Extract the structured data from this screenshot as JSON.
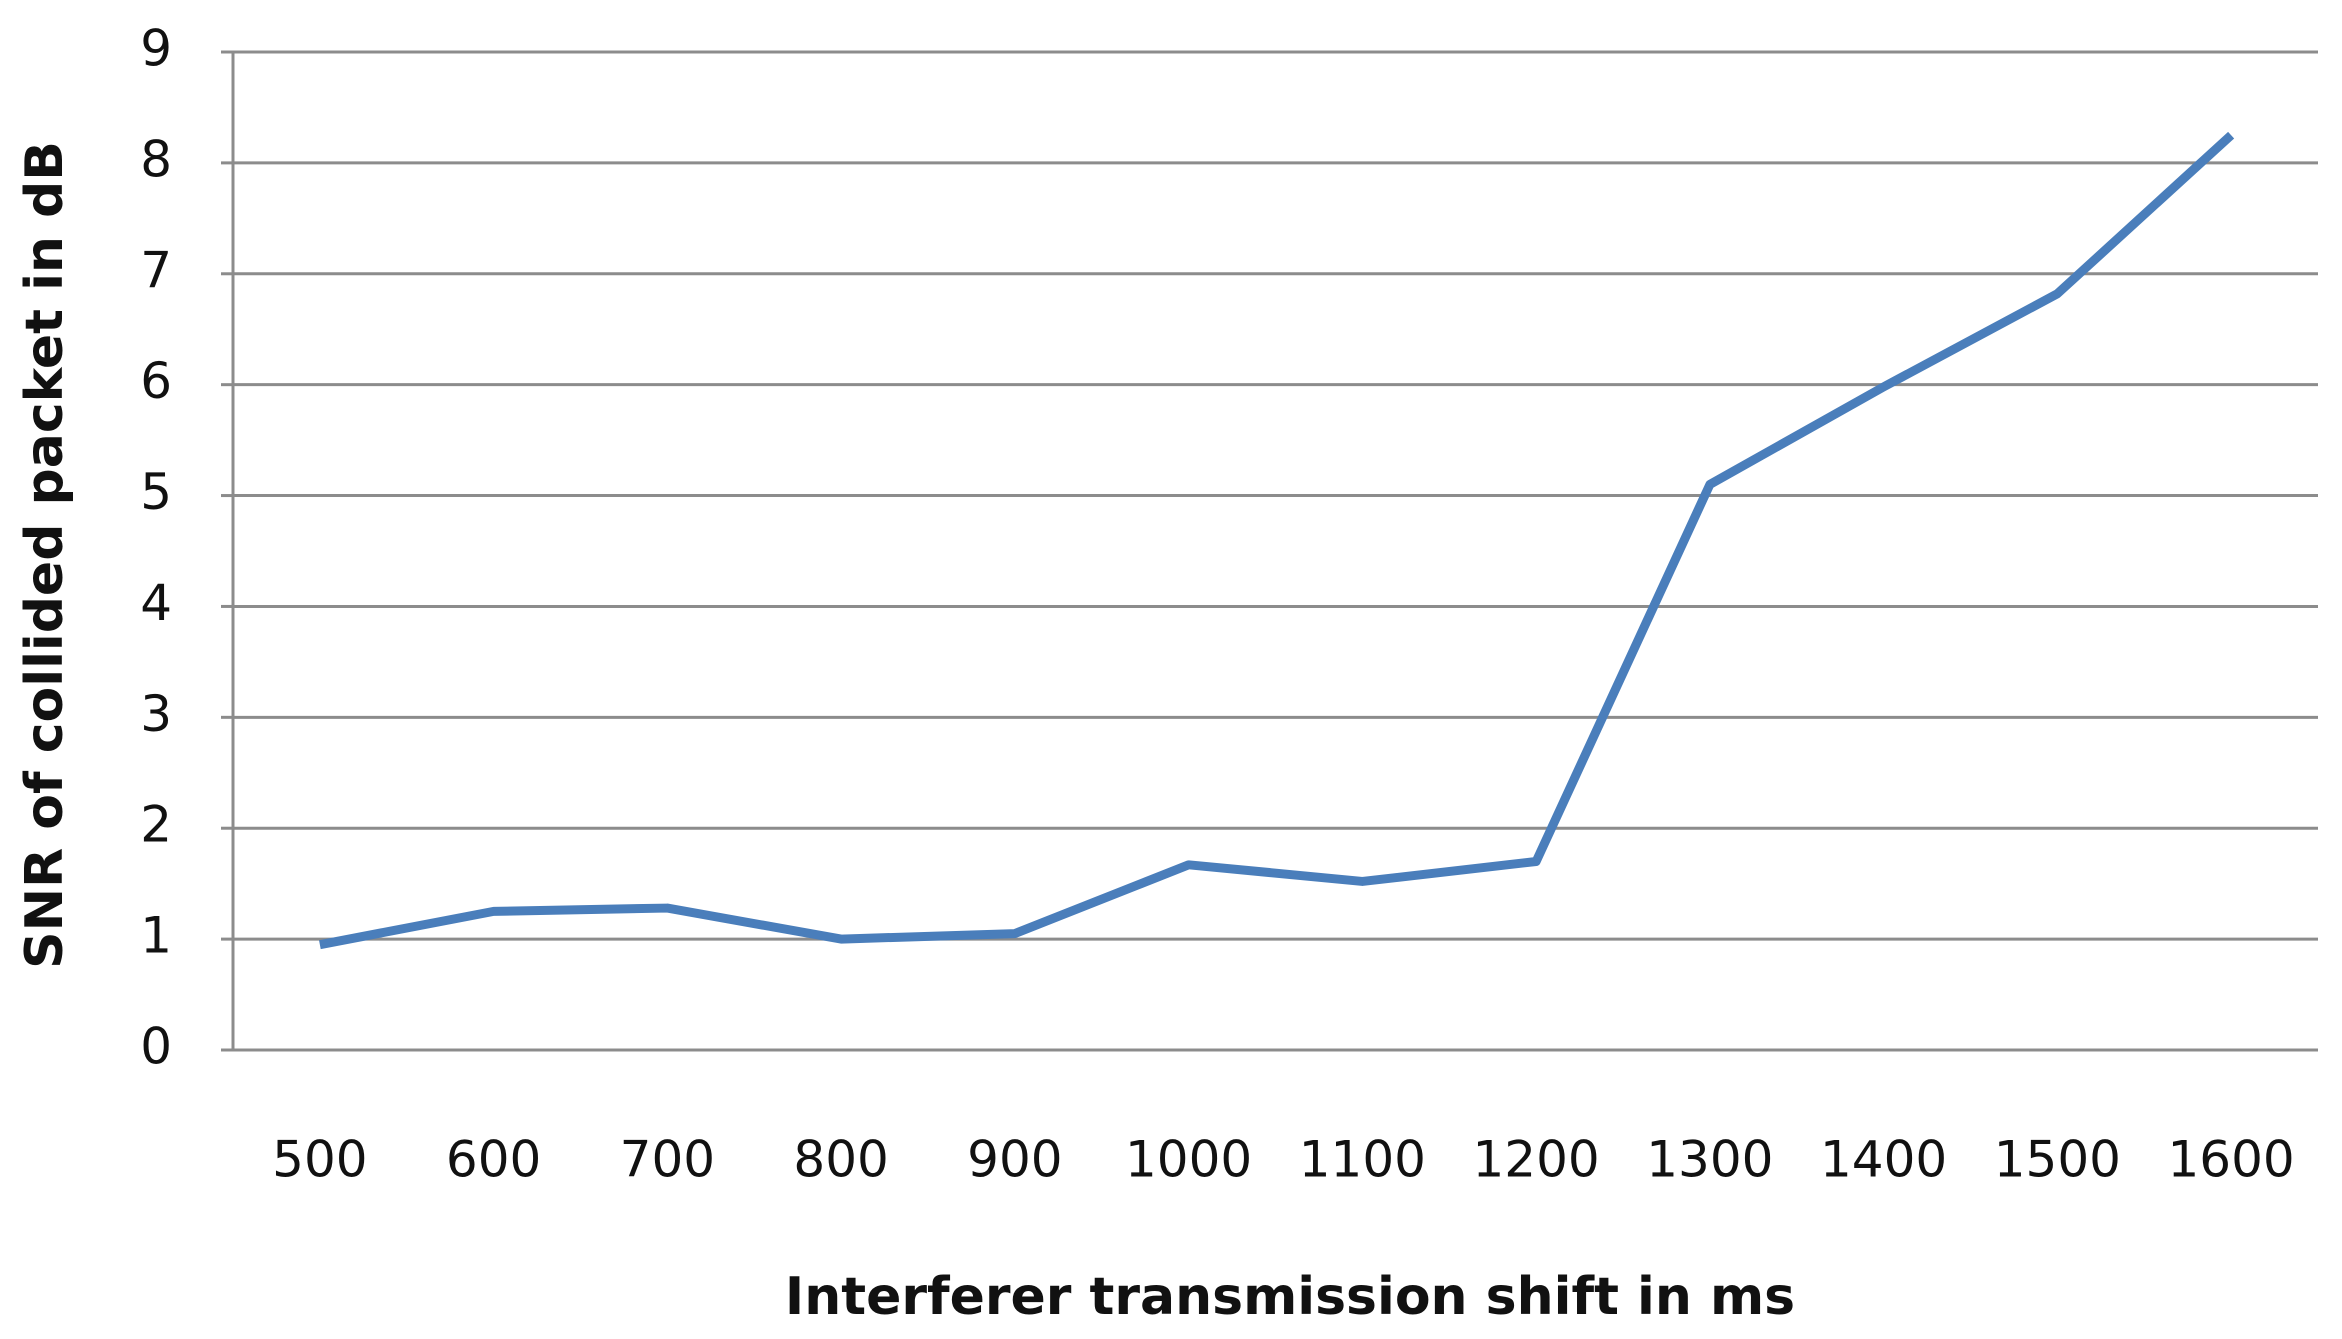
{
  "chart_data": {
    "type": "line",
    "x_label": "Interferer transmission shift in ms",
    "y_label": "SNR of collided packet in dB",
    "categories": [
      "500",
      "600",
      "700",
      "800",
      "900",
      "1000",
      "1100",
      "1200",
      "1300",
      "1400",
      "1500",
      "1600"
    ],
    "values": [
      0.95,
      1.25,
      1.28,
      1.0,
      1.05,
      1.67,
      1.52,
      1.7,
      5.1,
      5.98,
      6.82,
      8.25
    ],
    "color": "#4a7ebb",
    "ylim": [
      0,
      9
    ],
    "yticks": [
      0,
      1,
      2,
      3,
      4,
      5,
      6,
      7,
      8,
      9
    ],
    "grid": true
  }
}
